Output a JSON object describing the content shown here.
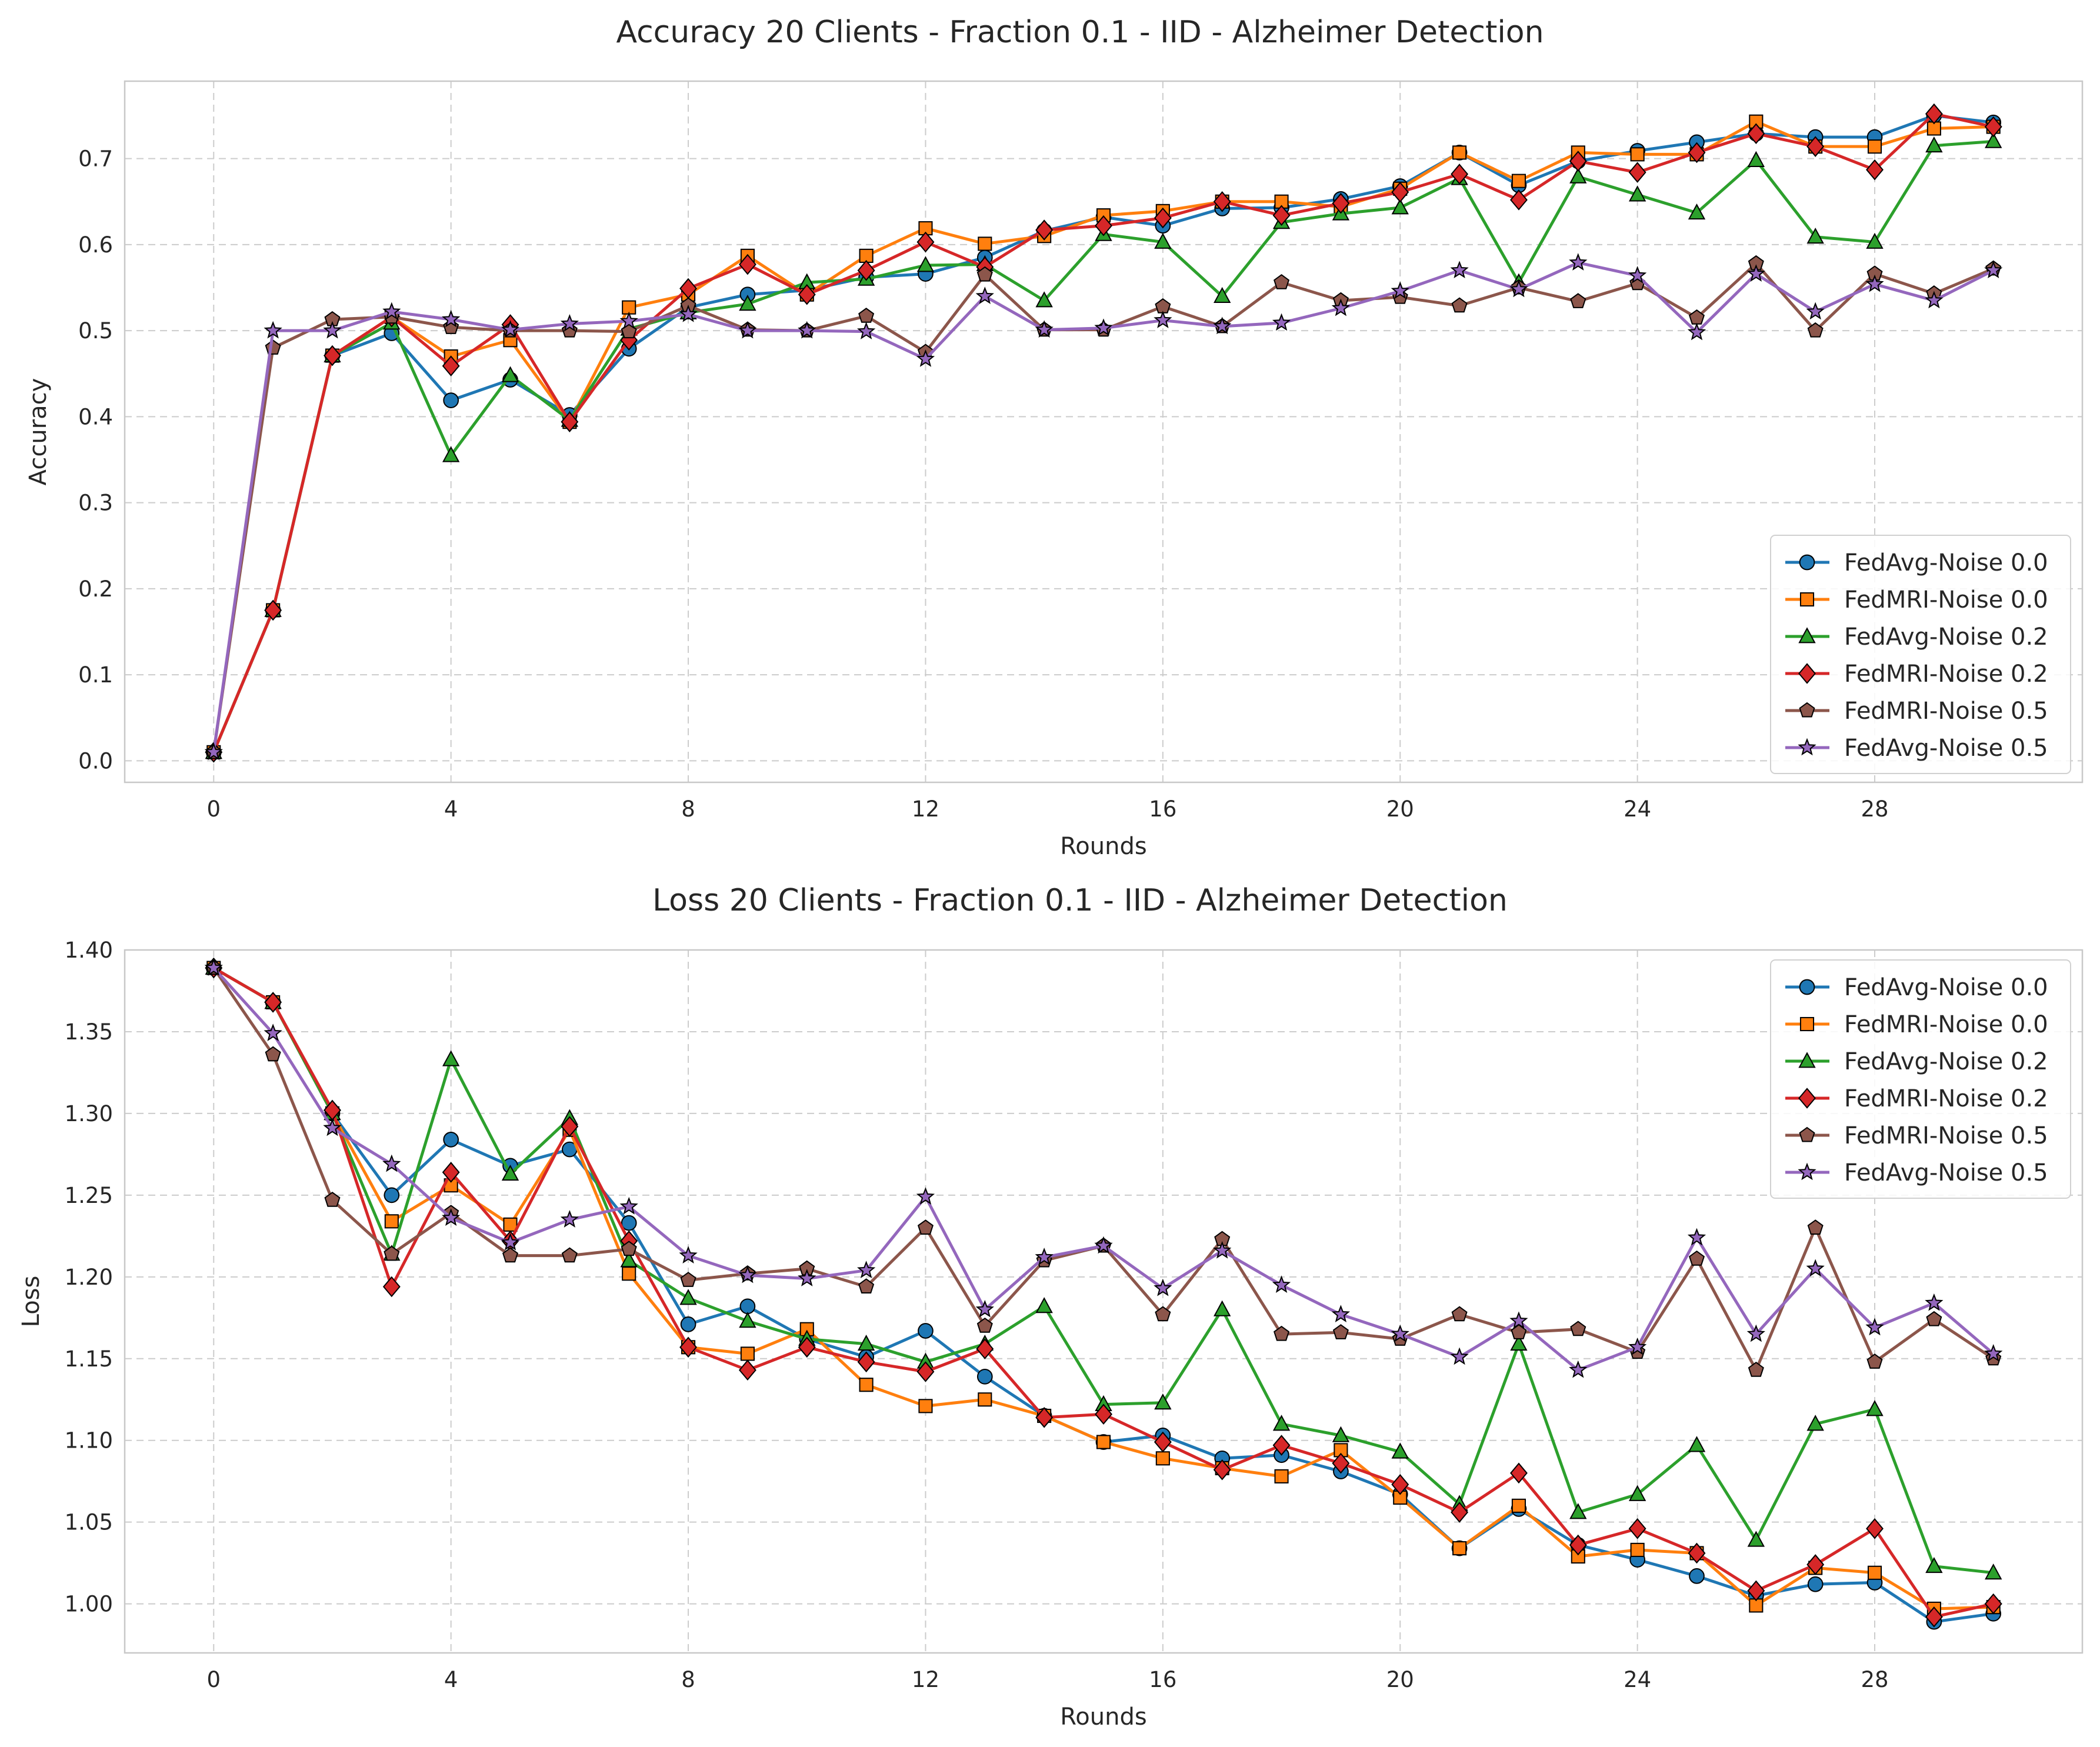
{
  "chart_data": [
    {
      "type": "line",
      "title": "Accuracy 20 Clients - Fraction 0.1 - IID - Alzheimer Detection",
      "xlabel": "Rounds",
      "ylabel": "Accuracy",
      "xlim": [
        -1.5,
        31.5
      ],
      "ylim": [
        -0.025,
        0.79
      ],
      "xticks": [
        0,
        4,
        8,
        12,
        16,
        20,
        24,
        28
      ],
      "yticks": [
        0.0,
        0.1,
        0.2,
        0.3,
        0.4,
        0.5,
        0.6,
        0.7
      ],
      "ytick_decimals": 1,
      "grid": true,
      "legend_position": "lower-right",
      "x": [
        0,
        1,
        2,
        3,
        4,
        5,
        6,
        7,
        8,
        9,
        10,
        11,
        12,
        13,
        14,
        15,
        16,
        17,
        18,
        19,
        20,
        21,
        22,
        23,
        24,
        25,
        26,
        27,
        28,
        29,
        30
      ],
      "series": [
        {
          "name": "FedAvg-Noise 0.0",
          "color": "#1f77b4",
          "marker": "circle",
          "values": [
            0.01,
            0.175,
            0.471,
            0.497,
            0.419,
            0.443,
            0.402,
            0.479,
            0.527,
            0.542,
            0.547,
            0.562,
            0.566,
            0.585,
            0.616,
            0.632,
            0.622,
            0.642,
            0.643,
            0.653,
            0.668,
            0.707,
            0.669,
            0.697,
            0.709,
            0.719,
            0.729,
            0.725,
            0.725,
            0.75,
            0.742
          ]
        },
        {
          "name": "FedMRI-Noise 0.0",
          "color": "#ff7f0e",
          "marker": "square",
          "values": [
            0.01,
            0.175,
            0.471,
            0.516,
            0.47,
            0.489,
            0.394,
            0.527,
            0.542,
            0.587,
            0.542,
            0.587,
            0.619,
            0.601,
            0.61,
            0.634,
            0.639,
            0.65,
            0.65,
            0.644,
            0.665,
            0.707,
            0.674,
            0.707,
            0.705,
            0.705,
            0.743,
            0.714,
            0.714,
            0.735,
            0.737
          ]
        },
        {
          "name": "FedAvg-Noise 0.2",
          "color": "#2ca02c",
          "marker": "triangle",
          "values": [
            0.01,
            0.175,
            0.471,
            0.509,
            0.355,
            0.448,
            0.396,
            0.502,
            0.521,
            0.531,
            0.556,
            0.56,
            0.576,
            0.577,
            0.535,
            0.612,
            0.603,
            0.54,
            0.626,
            0.636,
            0.643,
            0.677,
            0.556,
            0.679,
            0.658,
            0.637,
            0.698,
            0.609,
            0.603,
            0.715,
            0.72
          ]
        },
        {
          "name": "FedMRI-Noise 0.2",
          "color": "#d62728",
          "marker": "diamond",
          "values": [
            0.01,
            0.175,
            0.471,
            0.516,
            0.459,
            0.507,
            0.394,
            0.489,
            0.549,
            0.577,
            0.542,
            0.57,
            0.603,
            0.574,
            0.617,
            0.622,
            0.631,
            0.65,
            0.634,
            0.648,
            0.661,
            0.682,
            0.652,
            0.697,
            0.684,
            0.707,
            0.729,
            0.714,
            0.687,
            0.752,
            0.737
          ]
        },
        {
          "name": "FedMRI-Noise 0.5",
          "color": "#8c564b",
          "marker": "pentagon",
          "values": [
            0.01,
            0.48,
            0.513,
            0.516,
            0.504,
            0.5,
            0.5,
            0.499,
            0.529,
            0.501,
            0.5,
            0.517,
            0.475,
            0.565,
            0.501,
            0.501,
            0.528,
            0.505,
            0.556,
            0.535,
            0.539,
            0.529,
            0.55,
            0.534,
            0.555,
            0.515,
            0.578,
            0.5,
            0.566,
            0.543,
            0.572
          ]
        },
        {
          "name": "FedAvg-Noise 0.5",
          "color": "#9467bd",
          "marker": "star",
          "values": [
            0.01,
            0.5,
            0.5,
            0.522,
            0.513,
            0.501,
            0.508,
            0.511,
            0.519,
            0.5,
            0.5,
            0.499,
            0.467,
            0.54,
            0.501,
            0.503,
            0.512,
            0.505,
            0.509,
            0.526,
            0.546,
            0.57,
            0.548,
            0.579,
            0.564,
            0.498,
            0.566,
            0.522,
            0.554,
            0.535,
            0.57
          ]
        }
      ]
    },
    {
      "type": "line",
      "title": "Loss 20 Clients - Fraction 0.1 - IID - Alzheimer Detection",
      "xlabel": "Rounds",
      "ylabel": "Loss",
      "xlim": [
        -1.5,
        31.5
      ],
      "ylim": [
        0.97,
        1.4
      ],
      "xticks": [
        0,
        4,
        8,
        12,
        16,
        20,
        24,
        28
      ],
      "yticks": [
        1.0,
        1.05,
        1.1,
        1.15,
        1.2,
        1.25,
        1.3,
        1.35,
        1.4
      ],
      "ytick_decimals": 2,
      "grid": true,
      "legend_position": "upper-right",
      "x": [
        0,
        1,
        2,
        3,
        4,
        5,
        6,
        7,
        8,
        9,
        10,
        11,
        12,
        13,
        14,
        15,
        16,
        17,
        18,
        19,
        20,
        21,
        22,
        23,
        24,
        25,
        26,
        27,
        28,
        29,
        30
      ],
      "series": [
        {
          "name": "FedAvg-Noise 0.0",
          "color": "#1f77b4",
          "marker": "circle",
          "values": [
            1.389,
            1.368,
            1.3,
            1.25,
            1.284,
            1.268,
            1.278,
            1.233,
            1.171,
            1.182,
            1.162,
            1.151,
            1.167,
            1.139,
            1.115,
            1.099,
            1.103,
            1.089,
            1.091,
            1.081,
            1.067,
            1.034,
            1.058,
            1.036,
            1.027,
            1.017,
            1.005,
            1.012,
            1.013,
            0.989,
            0.994
          ]
        },
        {
          "name": "FedMRI-Noise 0.0",
          "color": "#ff7f0e",
          "marker": "square",
          "values": [
            1.389,
            1.368,
            1.3,
            1.234,
            1.256,
            1.232,
            1.29,
            1.202,
            1.157,
            1.153,
            1.168,
            1.134,
            1.121,
            1.125,
            1.115,
            1.099,
            1.089,
            1.083,
            1.078,
            1.094,
            1.065,
            1.034,
            1.06,
            1.029,
            1.033,
            1.031,
            0.999,
            1.022,
            1.019,
            0.997,
            0.998
          ]
        },
        {
          "name": "FedAvg-Noise 0.2",
          "color": "#2ca02c",
          "marker": "triangle",
          "values": [
            1.389,
            1.368,
            1.3,
            1.214,
            1.333,
            1.263,
            1.297,
            1.21,
            1.187,
            1.173,
            1.162,
            1.159,
            1.148,
            1.159,
            1.182,
            1.122,
            1.123,
            1.18,
            1.11,
            1.103,
            1.093,
            1.061,
            1.159,
            1.056,
            1.067,
            1.097,
            1.039,
            1.11,
            1.119,
            1.023,
            1.019
          ]
        },
        {
          "name": "FedMRI-Noise 0.2",
          "color": "#d62728",
          "marker": "diamond",
          "values": [
            1.389,
            1.368,
            1.302,
            1.194,
            1.264,
            1.222,
            1.292,
            1.222,
            1.157,
            1.143,
            1.157,
            1.148,
            1.142,
            1.156,
            1.114,
            1.116,
            1.099,
            1.082,
            1.097,
            1.086,
            1.073,
            1.056,
            1.08,
            1.036,
            1.046,
            1.031,
            1.008,
            1.024,
            1.046,
            0.992,
            1.0
          ]
        },
        {
          "name": "FedMRI-Noise 0.5",
          "color": "#8c564b",
          "marker": "pentagon",
          "values": [
            1.389,
            1.336,
            1.247,
            1.214,
            1.239,
            1.213,
            1.213,
            1.217,
            1.198,
            1.202,
            1.205,
            1.194,
            1.23,
            1.17,
            1.21,
            1.219,
            1.177,
            1.223,
            1.165,
            1.166,
            1.162,
            1.177,
            1.166,
            1.168,
            1.154,
            1.211,
            1.143,
            1.23,
            1.148,
            1.174,
            1.15
          ]
        },
        {
          "name": "FedAvg-Noise 0.5",
          "color": "#9467bd",
          "marker": "star",
          "values": [
            1.389,
            1.349,
            1.291,
            1.269,
            1.236,
            1.221,
            1.235,
            1.243,
            1.213,
            1.201,
            1.199,
            1.204,
            1.249,
            1.18,
            1.212,
            1.219,
            1.193,
            1.216,
            1.195,
            1.177,
            1.165,
            1.151,
            1.173,
            1.143,
            1.157,
            1.224,
            1.165,
            1.205,
            1.169,
            1.184,
            1.153
          ]
        }
      ]
    }
  ]
}
